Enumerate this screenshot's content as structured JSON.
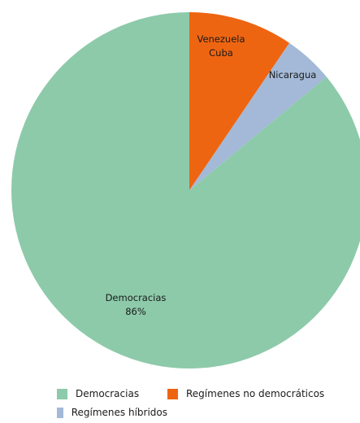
{
  "chart_data": {
    "type": "pie",
    "slices": [
      {
        "name": "Democracias",
        "value": 86,
        "color": "#8dcaaa",
        "label_lines": [
          "Democracias",
          "86%"
        ]
      },
      {
        "name": "Regímenes no democráticos",
        "value": 9.5,
        "color": "#ee6511",
        "label_lines": [
          "Venezuela",
          "Cuba"
        ]
      },
      {
        "name": "Regímenes híbridos",
        "value": 4.5,
        "color": "#a3b9d7",
        "label_lines": [
          "Nicaragua"
        ]
      }
    ],
    "start_angle_deg": 0,
    "direction": "clockwise",
    "legend_placement": "bottom"
  },
  "legend": {
    "items": [
      {
        "label": "Democracias",
        "color": "#8dcaaa"
      },
      {
        "label": "Regímenes no democráticos",
        "color": "#ee6511"
      },
      {
        "label": "Regímenes híbridos",
        "color": "#a3b9d7"
      }
    ]
  }
}
